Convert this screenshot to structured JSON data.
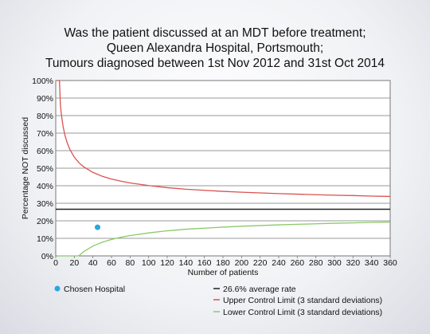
{
  "chart_data": {
    "type": "line",
    "title": [
      "Was the patient discussed at an MDT before treatment;",
      "Queen Alexandra Hospital, Portsmouth;",
      "Tumours diagnosed between 1st Nov 2012 and 31st Oct 2014"
    ],
    "xlabel": "Number of patients",
    "ylabel": "Percentage NOT discussed",
    "xlim": [
      0,
      360
    ],
    "ylim": [
      0,
      100
    ],
    "x_ticks": [
      0,
      20,
      40,
      60,
      80,
      100,
      120,
      140,
      160,
      180,
      200,
      220,
      240,
      260,
      280,
      300,
      320,
      340,
      360
    ],
    "y_ticks": [
      0,
      10,
      20,
      30,
      40,
      50,
      60,
      70,
      80,
      90,
      100
    ],
    "y_tick_suffix": "%",
    "grid": "horizontal",
    "average_rate": 26.6,
    "control_limit_sd": 3,
    "series": [
      {
        "name": "26.6% average rate",
        "role": "average",
        "color": "#222222",
        "x": [
          0,
          360
        ],
        "y": [
          26.6,
          26.6
        ]
      },
      {
        "name": "Upper Control Limit (3 standard deviations)",
        "role": "upper",
        "color": "#d9534f",
        "x": [
          1,
          2,
          3,
          4,
          5,
          6,
          8,
          10,
          12,
          15,
          20,
          25,
          30,
          40,
          50,
          60,
          70,
          80,
          100,
          120,
          140,
          160,
          180,
          200,
          220,
          240,
          260,
          280,
          300,
          320,
          340,
          360
        ],
        "y": [
          100,
          100,
          100,
          100,
          86.1,
          80.8,
          73.5,
          68.6,
          65.0,
          60.9,
          56.3,
          53.1,
          50.8,
          47.6,
          45.4,
          43.8,
          42.6,
          41.6,
          40.1,
          38.9,
          38.0,
          37.4,
          36.8,
          36.3,
          35.9,
          35.5,
          35.2,
          34.9,
          34.6,
          34.4,
          34.1,
          33.9
        ]
      },
      {
        "name": "Lower Control Limit (3 standard deviations)",
        "role": "lower",
        "color": "#8cc96b",
        "x": [
          1,
          10,
          20,
          23,
          25,
          30,
          40,
          50,
          60,
          70,
          80,
          100,
          120,
          140,
          160,
          180,
          200,
          220,
          240,
          260,
          280,
          300,
          320,
          340,
          360
        ],
        "y": [
          0,
          0,
          0,
          0,
          0.1,
          2.4,
          5.6,
          7.8,
          9.4,
          10.6,
          11.6,
          13.1,
          14.3,
          15.2,
          15.8,
          16.4,
          16.9,
          17.3,
          17.7,
          18.0,
          18.3,
          18.6,
          18.8,
          19.1,
          19.3
        ]
      }
    ],
    "points": [
      {
        "name": "Chosen Hospital",
        "x": 45,
        "y": 16.3,
        "color": "#29a8e0"
      }
    ],
    "legend": {
      "placement": "bottom",
      "left": [
        {
          "label": "Chosen Hospital",
          "marker": "dot",
          "color": "#29a8e0"
        }
      ],
      "right": [
        {
          "label": "26.6% average rate",
          "marker": "line",
          "color": "#222222"
        },
        {
          "label": "Upper Control Limit (3 standard deviations)",
          "marker": "line",
          "color": "#d9534f"
        },
        {
          "label": "Lower Control Limit (3 standard deviations)",
          "marker": "line",
          "color": "#8cc96b"
        }
      ]
    }
  }
}
